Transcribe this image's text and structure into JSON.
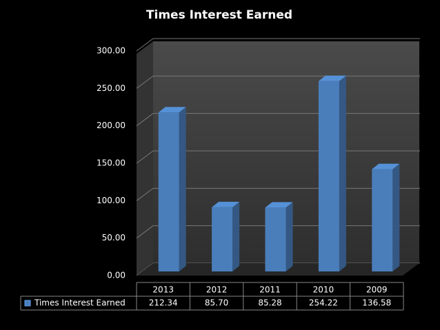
{
  "chart_data": {
    "type": "bar3d",
    "title": "Times Interest Earned",
    "categories": [
      "2013",
      "2012",
      "2011",
      "2010",
      "2009"
    ],
    "series": [
      {
        "name": "Times Interest Earned",
        "color": "#4a7ebb",
        "values": [
          212.34,
          85.7,
          85.28,
          254.22,
          136.58
        ],
        "value_labels": [
          "212.34",
          "85.70",
          "85.28",
          "254.22",
          "136.58"
        ]
      }
    ],
    "ylim": [
      0,
      300
    ],
    "yticks": [
      {
        "value": 0,
        "label": "0.00"
      },
      {
        "value": 50,
        "label": "50.00"
      },
      {
        "value": 100,
        "label": "100.00"
      },
      {
        "value": 150,
        "label": "150.00"
      },
      {
        "value": 200,
        "label": "200.00"
      },
      {
        "value": 250,
        "label": "250.00"
      },
      {
        "value": 300,
        "label": "300.00"
      }
    ],
    "grid": true,
    "data_table": true
  }
}
